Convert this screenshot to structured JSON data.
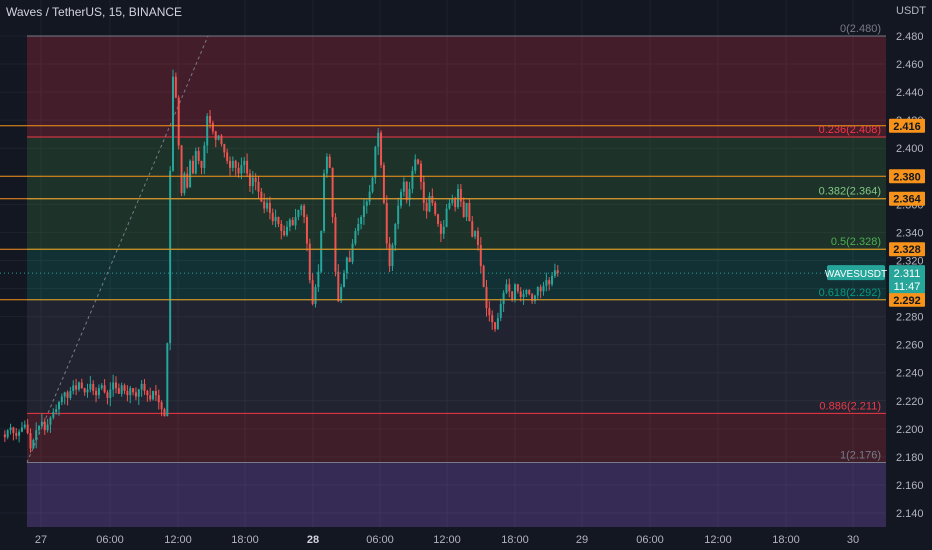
{
  "header": {
    "title": "Waves / TetherUS, 15, BINANCE",
    "unit": "USDT"
  },
  "colors": {
    "background": "#131722",
    "up": "#26a69a",
    "down": "#ef5350",
    "orange": "#f7931a",
    "grid": "#1e222d",
    "axis_text": "#b2b5be"
  },
  "chart_data": {
    "type": "candlestick",
    "symbol_label": "WAVESUSDT",
    "last_price": "2.311",
    "countdown": "11:47",
    "x_ticks": [
      "27",
      "06:00",
      "12:00",
      "18:00",
      "28",
      "06:00",
      "12:00",
      "18:00",
      "29",
      "06:00",
      "12:00",
      "18:00",
      "30"
    ],
    "y_ticks": [
      "2.480",
      "2.460",
      "2.440",
      "2.420",
      "2.400",
      "2.380",
      "2.360",
      "2.340",
      "2.320",
      "2.300",
      "2.280",
      "2.260",
      "2.240",
      "2.220",
      "2.200",
      "2.180",
      "2.160",
      "2.140"
    ],
    "ylim": [
      2.13,
      2.49
    ],
    "price_tags": [
      "2.416",
      "2.380",
      "2.364",
      "2.328",
      "2.292"
    ],
    "fib_levels": [
      {
        "label": "0(2.480)",
        "value": 2.48
      },
      {
        "label": "0.236(2.408)",
        "value": 2.408
      },
      {
        "label": "0.382(2.364)",
        "value": 2.364
      },
      {
        "label": "0.5(2.328)",
        "value": 2.328
      },
      {
        "label": "0.618(2.292)",
        "value": 2.292
      },
      {
        "label": "0.886(2.211)",
        "value": 2.211
      },
      {
        "label": "1(2.176)",
        "value": 2.176
      }
    ],
    "close_path": [
      2.196,
      2.194,
      2.199,
      2.201,
      2.197,
      2.195,
      2.198,
      2.201,
      2.203,
      2.197,
      2.186,
      2.192,
      2.199,
      2.202,
      2.205,
      2.199,
      2.203,
      2.208,
      2.212,
      2.214,
      2.219,
      2.223,
      2.226,
      2.222,
      2.227,
      2.231,
      2.228,
      2.233,
      2.229,
      2.226,
      2.228,
      2.232,
      2.227,
      2.224,
      2.229,
      2.231,
      2.226,
      2.222,
      2.228,
      2.233,
      2.229,
      2.225,
      2.231,
      2.227,
      2.224,
      2.229,
      2.226,
      2.223,
      2.228,
      2.232,
      2.227,
      2.224,
      2.221,
      2.227,
      2.224,
      2.219,
      2.214,
      2.209,
      2.261,
      2.384,
      2.451,
      2.436,
      2.402,
      2.368,
      2.382,
      2.372,
      2.391,
      2.382,
      2.398,
      2.391,
      2.386,
      2.402,
      2.423,
      2.418,
      2.412,
      2.406,
      2.409,
      2.403,
      2.397,
      2.391,
      2.386,
      2.391,
      2.386,
      2.382,
      2.388,
      2.391,
      2.382,
      2.373,
      2.379,
      2.376,
      2.369,
      2.362,
      2.357,
      2.361,
      2.354,
      2.348,
      2.351,
      2.346,
      2.341,
      2.338,
      2.344,
      2.349,
      2.345,
      2.351,
      2.356,
      2.359,
      2.351,
      2.332,
      2.306,
      2.289,
      2.301,
      2.312,
      2.341,
      2.382,
      2.394,
      2.386,
      2.351,
      2.312,
      2.291,
      2.301,
      2.311,
      2.322,
      2.319,
      2.332,
      2.341,
      2.346,
      2.351,
      2.359,
      2.362,
      2.369,
      2.379,
      2.401,
      2.411,
      2.388,
      2.361,
      2.332,
      2.316,
      2.331,
      2.346,
      2.359,
      2.369,
      2.376,
      2.363,
      2.371,
      2.384,
      2.392,
      2.389,
      2.376,
      2.361,
      2.355,
      2.366,
      2.361,
      2.353,
      2.346,
      2.339,
      2.344,
      2.357,
      2.361,
      2.364,
      2.358,
      2.371,
      2.362,
      2.351,
      2.361,
      2.348,
      2.337,
      2.341,
      2.331,
      2.316,
      2.301,
      2.286,
      2.281,
      2.276,
      2.271,
      2.279,
      2.289,
      2.297,
      2.303,
      2.298,
      2.292,
      2.303,
      2.298,
      2.294,
      2.296,
      2.299,
      2.296,
      2.291,
      2.295,
      2.301,
      2.298,
      2.302,
      2.306,
      2.303,
      2.309,
      2.313,
      2.311
    ]
  }
}
